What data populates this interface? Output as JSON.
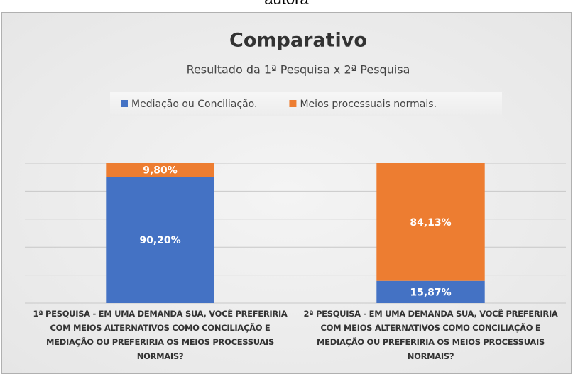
{
  "caption": "autora",
  "chart_data": {
    "type": "stacked_bar",
    "title": "Comparativo",
    "subtitle": "Resultado da 1ª Pesquisa x 2ª Pesquisa",
    "categories": [
      "1ª PESQUISA - EM UMA DEMANDA SUA, VOCÊ PREFERIRIA COM MEIOS ALTERNATIVOS COMO CONCILIAÇÃO E MEDIAÇÃO OU PREFERIRIA OS MEIOS PROCESSUAIS NORMAIS?",
      "2ª PESQUISA - EM UMA DEMANDA SUA, VOCÊ PREFERIRIA COM MEIOS ALTERNATIVOS COMO CONCILIAÇÃO E MEDIAÇÃO OU PREFERIRIA OS MEIOS PROCESSUAIS NORMAIS?"
    ],
    "series": [
      {
        "name": "Mediação ou Conciliação.",
        "color": "#4472c4",
        "values": [
          90.2,
          15.87
        ],
        "value_labels": [
          "90,20%",
          "15,87%"
        ]
      },
      {
        "name": "Meios processuais normais.",
        "color": "#ed7d31",
        "values": [
          9.8,
          84.13
        ],
        "value_labels": [
          "9,80%",
          "84,13%"
        ]
      }
    ],
    "ylim": [
      0,
      100
    ],
    "yticks": [
      0,
      20,
      40,
      60,
      80,
      100
    ],
    "grid": true,
    "legend": "top"
  }
}
